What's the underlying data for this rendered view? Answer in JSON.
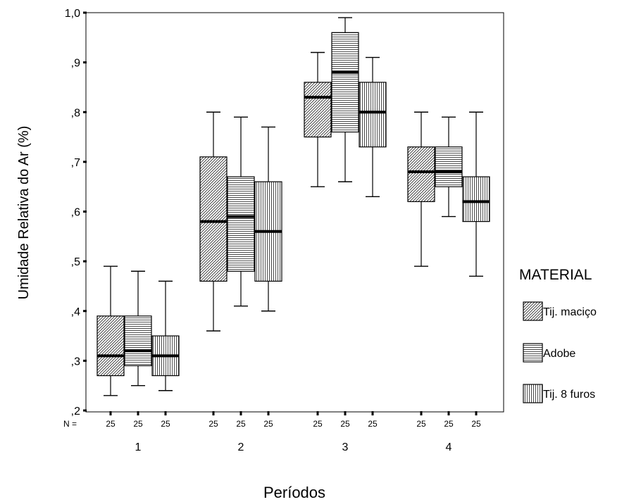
{
  "chart_data": {
    "type": "boxplot",
    "xlabel": "Períodos",
    "ylabel": "Umidade Relativa do Ar (%)",
    "ylim": [
      0.2,
      1.0
    ],
    "y_ticks": [
      {
        "value": 0.2,
        "label": ",2"
      },
      {
        "value": 0.3,
        "label": ",3"
      },
      {
        "value": 0.4,
        "label": ",4"
      },
      {
        "value": 0.5,
        "label": ",5"
      },
      {
        "value": 0.6,
        "label": ",6"
      },
      {
        "value": 0.7,
        "label": ",7"
      },
      {
        "value": 0.8,
        "label": ",8"
      },
      {
        "value": 0.9,
        "label": ",9"
      },
      {
        "value": 1.0,
        "label": "1,0"
      }
    ],
    "categories": [
      "1",
      "2",
      "3",
      "4"
    ],
    "n_label": "N =",
    "legend": {
      "title": "MATERIAL",
      "position": "right",
      "items": [
        "Tij. maciço",
        "Adobe",
        "Tij. 8 furos"
      ]
    },
    "series": [
      {
        "name": "Tij. maciço",
        "pattern": "diagonal",
        "n": [
          "25",
          "25",
          "25",
          "25"
        ],
        "boxes": [
          {
            "min": 0.23,
            "q1": 0.27,
            "median": 0.31,
            "q3": 0.39,
            "max": 0.49
          },
          {
            "min": 0.36,
            "q1": 0.46,
            "median": 0.58,
            "q3": 0.71,
            "max": 0.8
          },
          {
            "min": 0.65,
            "q1": 0.75,
            "median": 0.83,
            "q3": 0.86,
            "max": 0.92
          },
          {
            "min": 0.49,
            "q1": 0.62,
            "median": 0.68,
            "q3": 0.73,
            "max": 0.8
          }
        ]
      },
      {
        "name": "Adobe",
        "pattern": "horizontal",
        "n": [
          "25",
          "25",
          "25",
          "25"
        ],
        "boxes": [
          {
            "min": 0.25,
            "q1": 0.29,
            "median": 0.32,
            "q3": 0.39,
            "max": 0.48
          },
          {
            "min": 0.41,
            "q1": 0.48,
            "median": 0.59,
            "q3": 0.67,
            "max": 0.79
          },
          {
            "min": 0.66,
            "q1": 0.76,
            "median": 0.88,
            "q3": 0.96,
            "max": 0.99
          },
          {
            "min": 0.59,
            "q1": 0.65,
            "median": 0.68,
            "q3": 0.73,
            "max": 0.79
          }
        ]
      },
      {
        "name": "Tij. 8 furos",
        "pattern": "vertical",
        "n": [
          "25",
          "25",
          "25",
          "25"
        ],
        "boxes": [
          {
            "min": 0.24,
            "q1": 0.27,
            "median": 0.31,
            "q3": 0.35,
            "max": 0.46
          },
          {
            "min": 0.4,
            "q1": 0.46,
            "median": 0.56,
            "q3": 0.66,
            "max": 0.77
          },
          {
            "min": 0.63,
            "q1": 0.73,
            "median": 0.8,
            "q3": 0.86,
            "max": 0.91
          },
          {
            "min": 0.47,
            "q1": 0.58,
            "median": 0.62,
            "q3": 0.67,
            "max": 0.8
          }
        ]
      }
    ]
  }
}
